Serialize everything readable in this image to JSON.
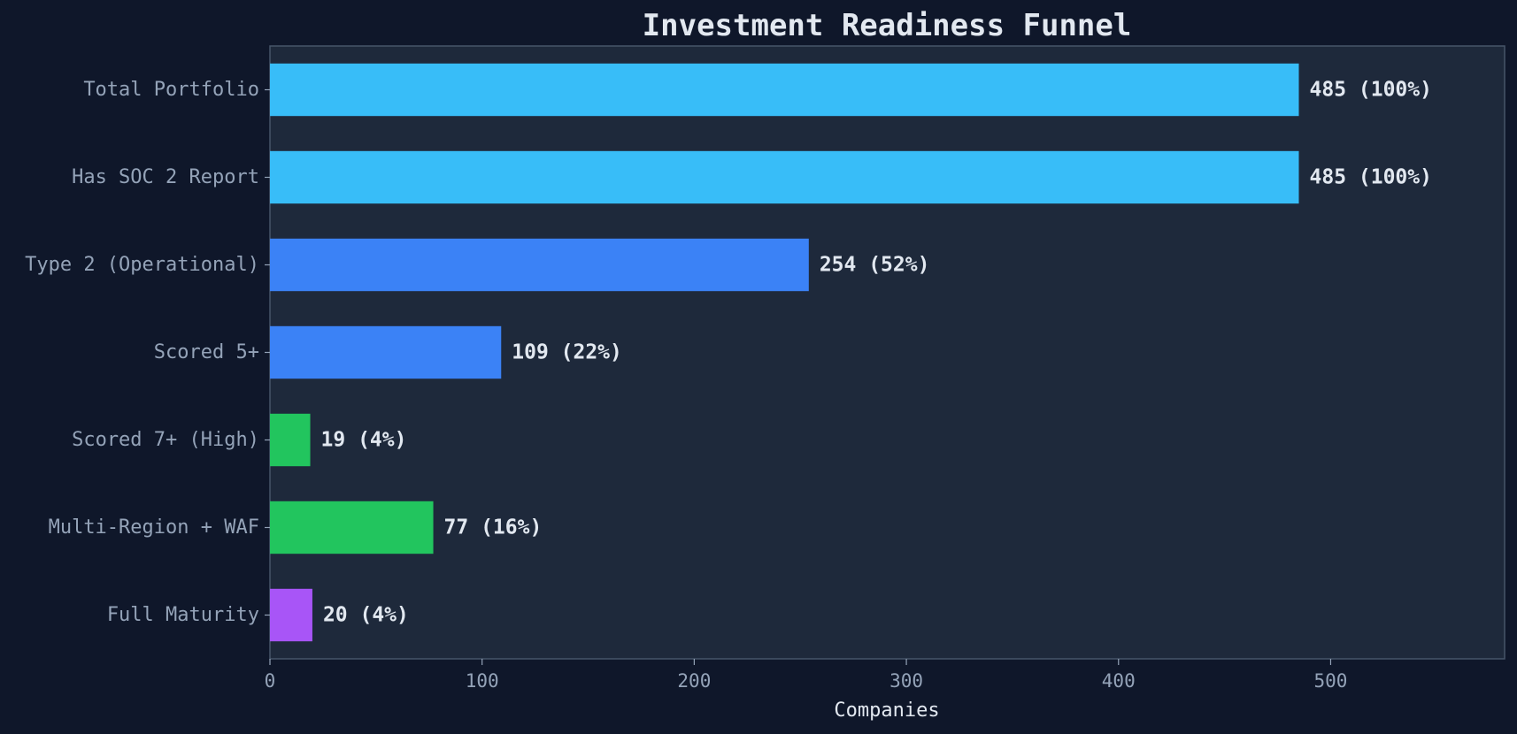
{
  "chart_data": {
    "type": "bar",
    "orientation": "horizontal",
    "title": "Investment Readiness Funnel",
    "xlabel": "Companies",
    "ylabel": "",
    "xlim": [
      0,
      582
    ],
    "x_ticks": [
      0,
      100,
      200,
      300,
      400,
      500
    ],
    "grid": false,
    "categories": [
      "Total Portfolio",
      "Has SOC 2 Report",
      "Type 2 (Operational)",
      "Scored 5+",
      "Scored 7+ (High)",
      "Multi-Region + WAF",
      "Full Maturity"
    ],
    "values": [
      485,
      485,
      254,
      109,
      19,
      77,
      20
    ],
    "data_labels": [
      "485 (100%)",
      "485 (100%)",
      "254 (52%)",
      "109 (22%)",
      "19 (4%)",
      "77 (16%)",
      "20 (4%)"
    ],
    "bar_colors": [
      "#38bdf8",
      "#38bdf8",
      "#3b82f6",
      "#3b82f6",
      "#22c55e",
      "#22c55e",
      "#a855f7"
    ],
    "colors": {
      "page_background": "#0f172a",
      "plot_background": "#1e293b",
      "axis": "#475569",
      "text": "#e2e8f0",
      "muted_text": "#94a3b8"
    }
  }
}
